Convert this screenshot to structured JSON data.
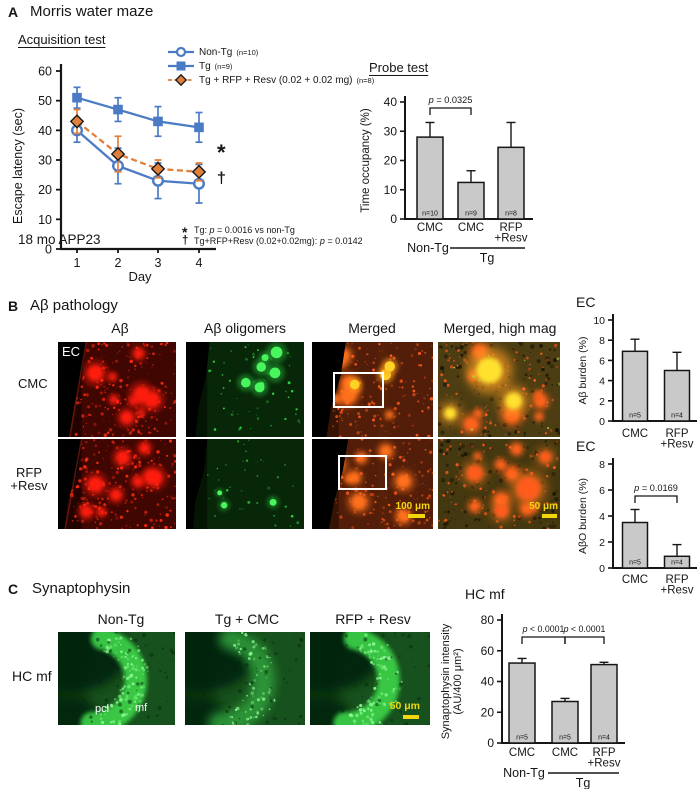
{
  "colors": {
    "blue": "#4a7bc4",
    "orange": "#e0803a",
    "bar_fill": "#c9c9c9",
    "bar_border": "#161616",
    "scalebar_yellow": "#f2d60e"
  },
  "panelA": {
    "label": "A",
    "title": "Morris water maze",
    "acquisition": {
      "subtitle": "Acquisition test"
    },
    "probe": {
      "subtitle": "Probe test"
    }
  },
  "panelB": {
    "label": "B",
    "title": "Aβ pathology",
    "col_headers": [
      "Aβ",
      "Aβ oligomers",
      "Merged",
      "Merged, high mag"
    ],
    "row_label_1": "CMC",
    "row_label_2a": "RFP",
    "row_label_2b": "+Resv",
    "region_tag": "EC",
    "scalebar_100": "100 μm",
    "scalebar_50": "50 μm"
  },
  "panelC": {
    "label": "C",
    "title": "Synaptophysin",
    "col_headers": [
      "Non-Tg",
      "Tg + CMC",
      "RFP + Resv"
    ],
    "row_label": "HC mf",
    "inner_labels": [
      "pcl",
      "mf"
    ],
    "scalebar": "50 μm",
    "chart_title": "HC mf"
  },
  "chart_data": [
    {
      "id": "acquisition",
      "type": "line",
      "title": "Acquisition test",
      "xlabel": "Day",
      "ylabel": "Escape latency (sec)",
      "x": [
        1,
        2,
        3,
        4
      ],
      "ylim": [
        0,
        60
      ],
      "yticks": [
        0,
        10,
        20,
        30,
        40,
        50,
        60
      ],
      "annotation": "18 mo APP23",
      "legend_position": "top-right",
      "grid": false,
      "series": [
        {
          "name": "Non-Tg",
          "n": "(n=10)",
          "values": [
            40,
            28,
            23,
            22
          ],
          "errors": [
            4,
            6,
            6,
            6.5
          ],
          "color": "#4a7bc4",
          "marker": "open-circle",
          "line": "solid"
        },
        {
          "name": "Tg",
          "n": "(n=9)",
          "values": [
            51,
            47,
            43,
            41
          ],
          "errors": [
            3.5,
            4,
            5,
            5
          ],
          "color": "#4a7bc4",
          "marker": "filled-square",
          "line": "solid"
        },
        {
          "name": "Tg + RFP + Resv (0.02 + 0.02 mg)",
          "n": "(n=8)",
          "values": [
            43,
            32,
            27,
            26
          ],
          "errors": [
            4,
            6,
            3,
            3
          ],
          "color": "#e0803a",
          "marker": "filled-diamond",
          "line": "dashed"
        }
      ],
      "sig_markers": [
        {
          "symbol": "*",
          "note": "Tg: p = 0.0016 vs non-Tg"
        },
        {
          "symbol": "†",
          "note": "Tg+RFP+Resv (0.02+0.02mg): p = 0.0142 vs Tg"
        }
      ]
    },
    {
      "id": "probe",
      "type": "bar",
      "title": "Probe test",
      "ylabel": "Time occupancy (%)",
      "ylim": [
        0,
        40
      ],
      "yticks": [
        0,
        10,
        20,
        30,
        40
      ],
      "categories": [
        [
          "CMC"
        ],
        [
          "CMC"
        ],
        [
          "RFP",
          "+Resv"
        ]
      ],
      "values": [
        28,
        12.5,
        24.5
      ],
      "errors": [
        5,
        4,
        8.5
      ],
      "bar_n": [
        "n=10",
        "n=9",
        "n=8"
      ],
      "brackets": [
        {
          "from": 0,
          "to": 1,
          "label": "p = 0.0325"
        }
      ],
      "groups": [
        {
          "label": "Non-Tg"
        },
        {
          "label": "Tg",
          "underline": true
        }
      ]
    },
    {
      "id": "ec_abeta",
      "type": "bar",
      "title": "EC",
      "ylabel": "Aβ burden (%)",
      "ylim": [
        0,
        10
      ],
      "yticks": [
        0,
        2,
        4,
        6,
        8,
        10
      ],
      "categories": [
        [
          "CMC"
        ],
        [
          "RFP",
          "+Resv"
        ]
      ],
      "values": [
        6.9,
        5.0
      ],
      "errors": [
        1.2,
        1.8
      ],
      "bar_n": [
        "n=5",
        "n=4"
      ],
      "brackets": []
    },
    {
      "id": "ec_abo",
      "type": "bar",
      "title": "EC",
      "ylabel": "AβO burden (%)",
      "ylim": [
        0,
        8
      ],
      "yticks": [
        0,
        2,
        4,
        6,
        8
      ],
      "categories": [
        [
          "CMC"
        ],
        [
          "RFP",
          "+Resv"
        ]
      ],
      "values": [
        3.5,
        0.9
      ],
      "errors": [
        1.0,
        0.9
      ],
      "bar_n": [
        "n=5",
        "n=4"
      ],
      "brackets": [
        {
          "from": 0,
          "to": 1,
          "label": "p = 0.0169"
        }
      ]
    },
    {
      "id": "hcmf",
      "type": "bar",
      "title": "HC mf",
      "ylabel": "Synaptophysin intensity (AU/400 μm²)",
      "ylabel_lines": [
        "Synaptophysin intensity",
        "(AU/400 μm²)"
      ],
      "ylim": [
        0,
        80
      ],
      "yticks": [
        0,
        20,
        40,
        60,
        80
      ],
      "categories": [
        [
          "CMC"
        ],
        [
          "CMC"
        ],
        [
          "RFP",
          "+Resv"
        ]
      ],
      "values": [
        52,
        27,
        51
      ],
      "errors": [
        3,
        2,
        1.5
      ],
      "bar_n": [
        "n=5",
        "n=5",
        "n=4"
      ],
      "brackets": [
        {
          "from": 0,
          "to": 1,
          "label": "p < 0.0001"
        },
        {
          "from": 1,
          "to": 2,
          "label": "p < 0.0001"
        }
      ],
      "groups": [
        {
          "label": "Non-Tg"
        },
        {
          "label": "Tg",
          "underline": true
        }
      ]
    }
  ]
}
